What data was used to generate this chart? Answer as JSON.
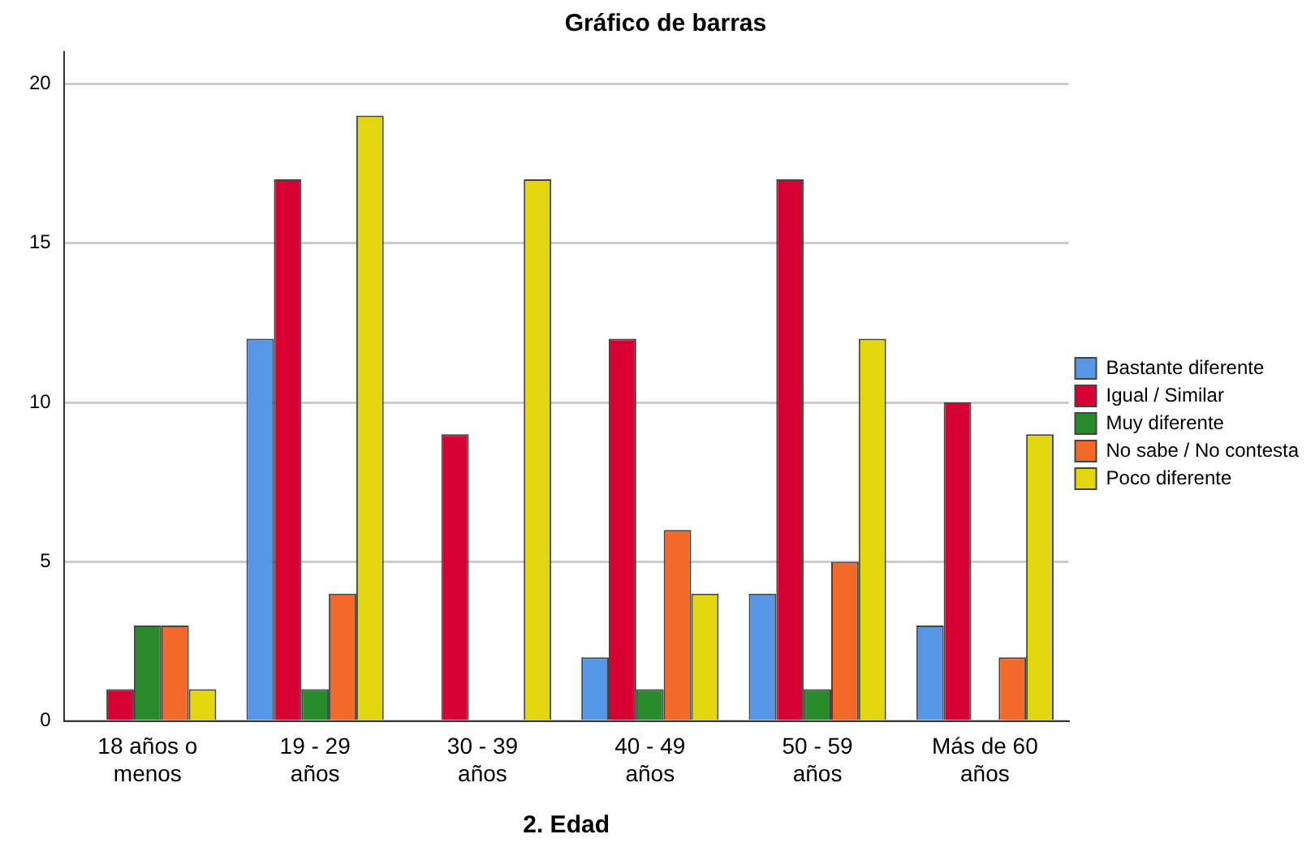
{
  "chart_data": {
    "type": "bar",
    "title": "Gráfico de barras",
    "xlabel": "2. Edad",
    "categories": [
      "18 años o menos",
      "19 - 29 años",
      "30 - 39 años",
      "40 - 49 años",
      "50 - 59 años",
      "Más de 60 años"
    ],
    "series": [
      {
        "name": "Bastante diferente",
        "color": "#5596e6",
        "values": [
          null,
          12,
          null,
          2,
          4,
          3
        ]
      },
      {
        "name": "Igual / Similar",
        "color": "#d60032",
        "values": [
          1,
          17,
          9,
          12,
          17,
          10
        ]
      },
      {
        "name": "Muy diferente",
        "color": "#288a2a",
        "values": [
          3,
          1,
          null,
          1,
          1,
          null
        ]
      },
      {
        "name": "No sabe / No contesta",
        "color": "#f2692a",
        "values": [
          3,
          4,
          null,
          6,
          5,
          2
        ]
      },
      {
        "name": "Poco diferente",
        "color": "#e2d70c",
        "values": [
          1,
          19,
          17,
          4,
          12,
          9
        ]
      }
    ],
    "ylim": [
      0,
      21
    ],
    "yticks": [
      0,
      5,
      10,
      15,
      20
    ],
    "grid": "y",
    "legend": "right"
  }
}
